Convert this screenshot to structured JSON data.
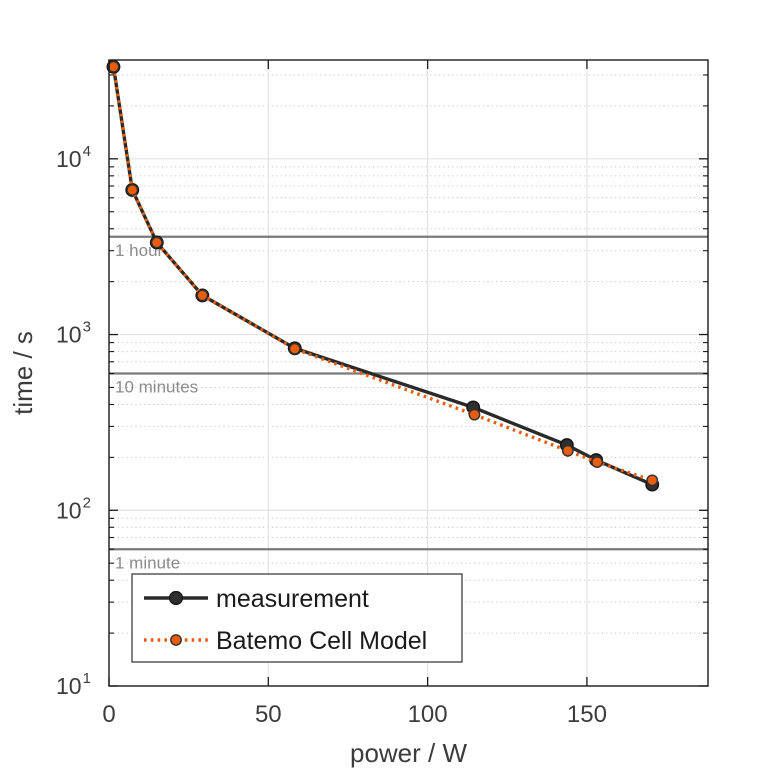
{
  "chart_data": {
    "type": "line",
    "title": "",
    "xlabel": "power / W",
    "ylabel": "time / s",
    "xlim": [
      0,
      188
    ],
    "ylim_log": [
      10,
      36500
    ],
    "yscale": "log",
    "x_ticks": [
      0,
      50,
      100,
      150
    ],
    "x_tick_labels": [
      "0",
      "50",
      "100",
      "150"
    ],
    "y_tick_exponents": [
      1,
      2,
      3,
      4
    ],
    "grid": "major horizontal+vertical solid, log-minor horizontal dotted",
    "legend_position": "bottom-left",
    "series": [
      {
        "name": "measurement",
        "color": "#2a2a2a",
        "line_style": "solid",
        "marker": "circle",
        "x": [
          1.4,
          7.3,
          15,
          29.3,
          58.3,
          114.3,
          143.7,
          152.9,
          170.5
        ],
        "y": [
          33400,
          6650,
          3340,
          1670,
          835,
          385,
          235,
          193,
          140
        ]
      },
      {
        "name": "Batemo Cell Model",
        "color": "#e85d0c",
        "line_style": "dotted",
        "marker": "circle",
        "x": [
          1.4,
          7.3,
          15,
          29.3,
          58.3,
          114.7,
          144.0,
          153.2,
          170.5
        ],
        "y": [
          33400,
          6650,
          3340,
          1670,
          830,
          350,
          218,
          188,
          148
        ]
      }
    ],
    "reference_lines": [
      {
        "label": "1 hour",
        "y": 3600
      },
      {
        "label": "10 minutes",
        "y": 600
      },
      {
        "label": "1 minute",
        "y": 60
      }
    ],
    "colors": {
      "accent_orange": "#e85d0c",
      "measurement_black": "#2a2a2a",
      "axis": "#1a1a1a",
      "tick_text": "#3c3c3c",
      "grid_major": "#e3e3e3",
      "grid_minor": "#c4c4c4",
      "reference_line": "#7a7a7a",
      "reference_text": "#8c8c8c",
      "legend_border": "#3f3f3f",
      "legend_bg": "#ffffff"
    }
  }
}
